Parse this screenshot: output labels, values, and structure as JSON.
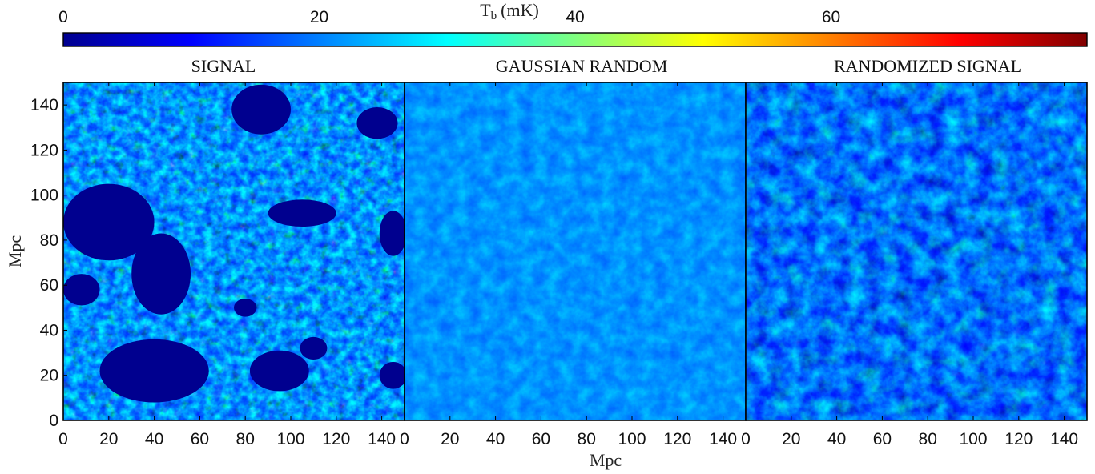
{
  "chart_data": {
    "type": "heatmap",
    "colorbar": {
      "label": "T_b (mK)",
      "label_parts": {
        "symbol": "T",
        "subscript": "b",
        "unit": "(mK)"
      },
      "range": [
        0,
        80
      ],
      "ticks": [
        0,
        20,
        40,
        60
      ],
      "tick_labels": [
        "0",
        "20",
        "40",
        "60"
      ],
      "colormap": "jet",
      "placement": "top"
    },
    "xlabel": "Mpc",
    "ylabel": "Mpc",
    "xlim": [
      0,
      150
    ],
    "ylim": [
      0,
      150
    ],
    "x_ticks": [
      0,
      20,
      40,
      60,
      80,
      100,
      120,
      140
    ],
    "x_tick_labels": [
      "0",
      "20",
      "40",
      "60",
      "80",
      "100",
      "120",
      "140"
    ],
    "y_ticks": [
      0,
      20,
      40,
      60,
      80,
      100,
      120,
      140
    ],
    "y_tick_labels": [
      "0",
      "20",
      "40",
      "60",
      "80",
      "100",
      "120",
      "140"
    ],
    "panels": [
      {
        "title": "SIGNAL",
        "description_values": {
          "background_mK": 9,
          "ionized_regions_mK": 0,
          "filament_peak_mK": 40,
          "ionized_bubbles": [
            {
              "cx": 87,
              "cy": 138,
              "rx": 13,
              "ry": 11
            },
            {
              "cx": 105,
              "cy": 92,
              "rx": 15,
              "ry": 6
            },
            {
              "cx": 20,
              "cy": 88,
              "rx": 20,
              "ry": 17
            },
            {
              "cx": 43,
              "cy": 65,
              "rx": 13,
              "ry": 18
            },
            {
              "cx": 40,
              "cy": 22,
              "rx": 24,
              "ry": 14
            },
            {
              "cx": 95,
              "cy": 22,
              "rx": 13,
              "ry": 9
            },
            {
              "cx": 138,
              "cy": 132,
              "rx": 9,
              "ry": 7
            },
            {
              "cx": 8,
              "cy": 58,
              "rx": 8,
              "ry": 7
            },
            {
              "cx": 145,
              "cy": 83,
              "rx": 6,
              "ry": 10
            },
            {
              "cx": 110,
              "cy": 32,
              "rx": 6,
              "ry": 5
            },
            {
              "cx": 80,
              "cy": 50,
              "rx": 5,
              "ry": 4
            },
            {
              "cx": 145,
              "cy": 20,
              "rx": 6,
              "ry": 6
            }
          ]
        }
      },
      {
        "title": "GAUSSIAN RANDOM",
        "description_values": {
          "mean_mK": 17,
          "low_mK": 10,
          "high_mK": 25
        }
      },
      {
        "title": "RANDOMIZED SIGNAL",
        "description_values": {
          "mean_mK": 9,
          "low_mK": 0,
          "high_mK": 40
        }
      }
    ]
  }
}
